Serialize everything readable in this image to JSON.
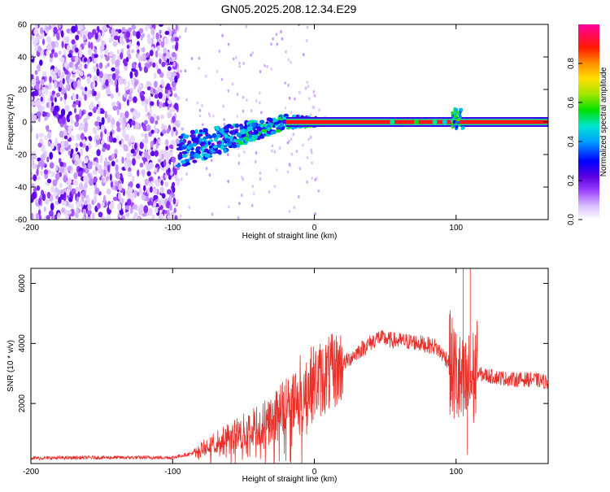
{
  "title": "GN05.2025.208.12.34.E29",
  "chart_data": [
    {
      "type": "heatmap",
      "xlabel": "Height of straight line (km)",
      "ylabel": "Frequency (Hz)",
      "xlim": [
        -200,
        165
      ],
      "ylim": [
        -60,
        60
      ],
      "xticks": [
        -200,
        -100,
        0,
        100
      ],
      "yticks": [
        -60,
        -40,
        -20,
        0,
        20,
        40,
        60
      ],
      "colorbar": {
        "label": "Normalized spectral amplitude",
        "range": [
          0.0,
          1.0
        ],
        "ticks": [
          0.0,
          0.2,
          0.4,
          0.6,
          0.8
        ],
        "tick_labels": [
          "0.0",
          "0.2",
          "0.4",
          "0.6",
          "0.8"
        ],
        "colors": [
          "#ffffff",
          "#c9a3ff",
          "#7a00e6",
          "#0000ff",
          "#00a0ff",
          "#00e6c8",
          "#00e600",
          "#c8e600",
          "#ffd700",
          "#ff8000",
          "#ff0000",
          "#ff00a0"
        ]
      },
      "regions": [
        {
          "x_range": [
            -200,
            -96
          ],
          "freq_range": [
            -60,
            60
          ],
          "amplitude_range": [
            0.05,
            0.25
          ],
          "description_values": "broadband noise"
        },
        {
          "x_range": [
            -96,
            10
          ],
          "line_freq_start": -18,
          "line_freq_end": 0,
          "amplitude_range": [
            0.2,
            0.6
          ]
        },
        {
          "x_range": [
            0,
            105
          ],
          "line_freq": 0,
          "amplitude": 0.9
        },
        {
          "x_range": [
            105,
            165
          ],
          "line_freq": 0,
          "amplitude": 0.95
        }
      ]
    },
    {
      "type": "line",
      "xlabel": "Height of straight line (km)",
      "ylabel": "SNR (10 * v/v)",
      "xlim": [
        -200,
        165
      ],
      "ylim": [
        0,
        6500
      ],
      "xticks": [
        -200,
        -100,
        0,
        100
      ],
      "yticks": [
        2000,
        4000,
        6000
      ],
      "series_color": "#e8302a",
      "trend": {
        "x": [
          -200,
          -150,
          -100,
          -85,
          -70,
          -50,
          -30,
          -15,
          0,
          15,
          30,
          45,
          55,
          70,
          85,
          95,
          105,
          115,
          125,
          140,
          155,
          165
        ],
        "y": [
          180,
          200,
          200,
          350,
          700,
          1050,
          1500,
          2200,
          2700,
          3100,
          3700,
          4200,
          4100,
          4050,
          3900,
          3400,
          2400,
          3000,
          2900,
          2800,
          2800,
          2700
        ]
      },
      "spikes": [
        {
          "x": 105,
          "y": 6500
        },
        {
          "x": 110,
          "y": 6500
        },
        {
          "x": 108,
          "y": 300
        }
      ]
    }
  ]
}
